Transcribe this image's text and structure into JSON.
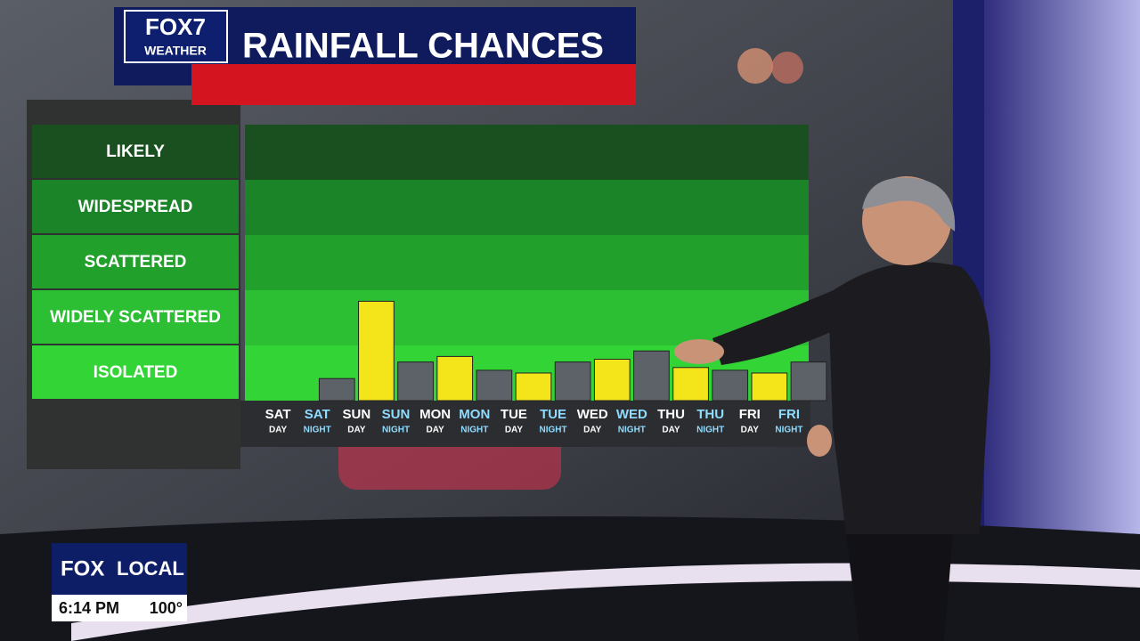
{
  "chart_data": {
    "type": "bar",
    "title": "RAINFALL CHANCES",
    "categories": [
      "SAT",
      "SAT",
      "SUN",
      "SUN",
      "MON",
      "MON",
      "TUE",
      "TUE",
      "WED",
      "WED",
      "THU",
      "THU",
      "FRI",
      "FRI"
    ],
    "category_periods": [
      "DAY",
      "NIGHT",
      "DAY",
      "NIGHT",
      "DAY",
      "NIGHT",
      "DAY",
      "NIGHT",
      "DAY",
      "NIGHT",
      "DAY",
      "NIGHT",
      "DAY",
      "NIGHT"
    ],
    "values": [
      0,
      0.4,
      1.8,
      0.7,
      0.8,
      0.55,
      0.5,
      0.7,
      0.75,
      0.9,
      0.6,
      0.55,
      0.5,
      0.7
    ],
    "bar_colors": [
      "#f4e51a",
      "#5d6269",
      "#f4e51a",
      "#5d6269",
      "#f4e51a",
      "#5d6269",
      "#f4e51a",
      "#5d6269",
      "#f4e51a",
      "#5d6269",
      "#f4e51a",
      "#5d6269",
      "#f4e51a",
      "#5d6269"
    ],
    "ylim": [
      0,
      5
    ],
    "yticks": [
      {
        "value": 0.5,
        "label": "ISOLATED"
      },
      {
        "value": 1.5,
        "label": "WIDELY SCATTERED"
      },
      {
        "value": 2.5,
        "label": "SCATTERED"
      },
      {
        "value": 3.5,
        "label": "WIDESPREAD"
      },
      {
        "value": 4.5,
        "label": "LIKELY"
      }
    ],
    "band_colors": [
      "#33d536",
      "#2cbf33",
      "#22a02c",
      "#1c8428",
      "#1a4f1f"
    ]
  },
  "branding": {
    "logo": "FOX7",
    "logo_sub": "WEATHER"
  },
  "bug": {
    "network": "FOX",
    "channel": "LOCAL",
    "time": "6:14 PM",
    "temperature": "100°"
  }
}
